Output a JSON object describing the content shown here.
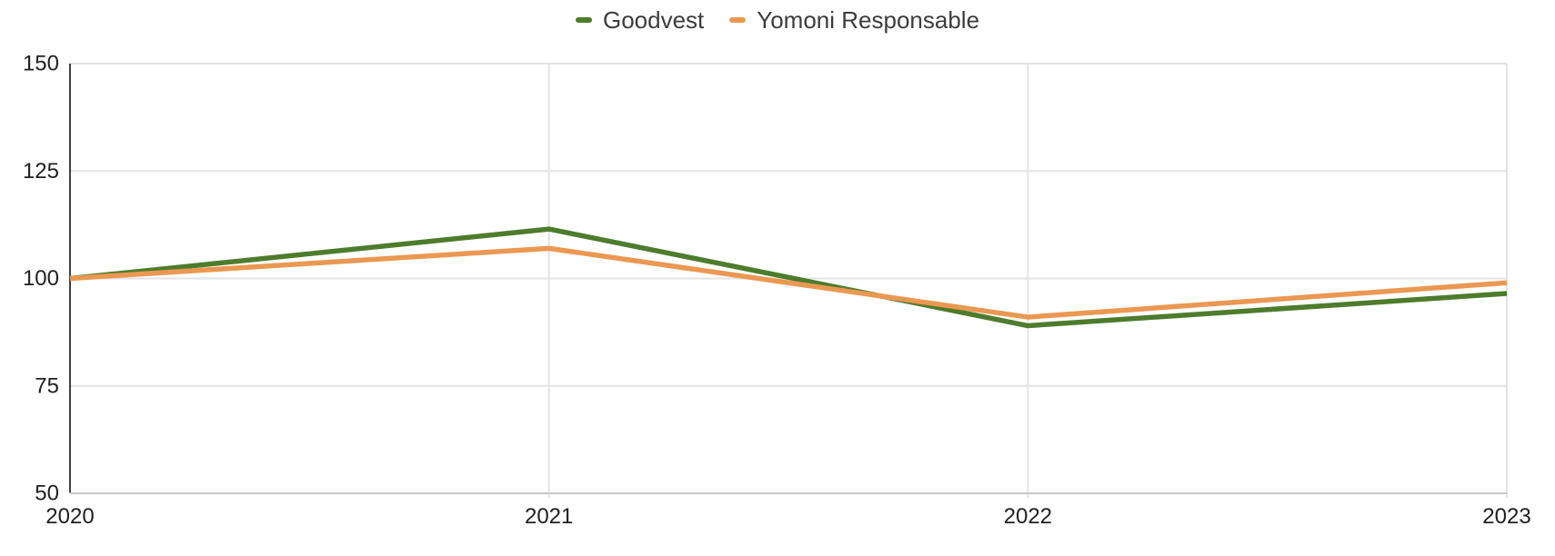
{
  "chart_data": {
    "type": "line",
    "title": "",
    "xlabel": "",
    "ylabel": "",
    "x": [
      "2020",
      "2021",
      "2022",
      "2023"
    ],
    "series": [
      {
        "name": "Goodvest",
        "color": "#4d7c2c",
        "values": [
          100,
          111.5,
          89,
          96.5
        ]
      },
      {
        "name": "Yomoni Responsable",
        "color": "#ea9852",
        "values": [
          100,
          107,
          91,
          99
        ]
      }
    ],
    "ylim": [
      50,
      150
    ],
    "yticks": [
      150,
      125,
      100,
      75,
      50
    ],
    "legend_position": "top",
    "grid": {
      "horizontal": true,
      "vertical": true,
      "gridline_color": "#e3e3e3",
      "y_axis_line_color": "#404040",
      "x_axis_line_color": "#c9c9c9",
      "tick_label_color": "#212121"
    },
    "line_width": 5.5
  }
}
